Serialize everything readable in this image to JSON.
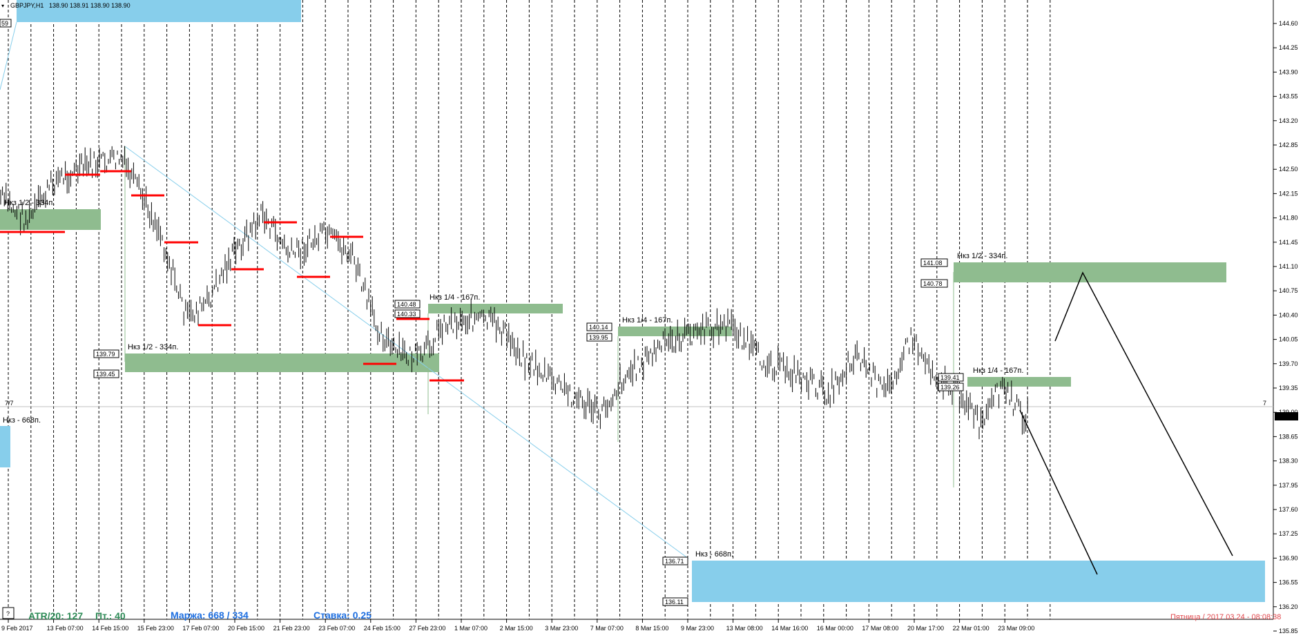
{
  "header": {
    "symbol": "GBPJPY,H1",
    "ohlc": "138.90 138.91 138.90 138.90"
  },
  "top_left_tag": "59",
  "current_price": "138.90",
  "side_count_left": "7/7",
  "side_count_right": "7",
  "price_axis": [
    "144.60",
    "144.25",
    "143.90",
    "143.55",
    "143.20",
    "142.85",
    "142.50",
    "142.15",
    "141.80",
    "141.45",
    "141.10",
    "140.75",
    "140.40",
    "140.05",
    "139.70",
    "139.35",
    "139.00",
    "138.65",
    "138.30",
    "137.95",
    "137.60",
    "137.25",
    "136.90",
    "136.55",
    "136.20",
    "135.85"
  ],
  "time_axis": [
    "9 Feb 2017",
    "13 Feb 07:00",
    "14 Feb 15:00",
    "15 Feb 23:00",
    "17 Feb 07:00",
    "20 Feb 15:00",
    "21 Feb 23:00",
    "23 Feb 07:00",
    "24 Feb 15:00",
    "27 Feb 23:00",
    "1 Mar 07:00",
    "2 Mar 15:00",
    "3 Mar 23:00",
    "7 Mar 07:00",
    "8 Mar 15:00",
    "9 Mar 23:00",
    "13 Mar 08:00",
    "14 Mar 16:00",
    "16 Mar 00:00",
    "17 Mar 08:00",
    "20 Mar 17:00",
    "22 Mar 01:00",
    "23 Mar 09:00"
  ],
  "zones": {
    "z_left_half": "Нкз 1/2 - 334п.",
    "z_left_mid_half": "Нкз 1/2 - 334п.",
    "z_quarter_1": "Нкз 1/4 - 167п.",
    "z_quarter_2": "Нкз 1/4 - 167п.",
    "z_right_half": "Нкз 1/2 - 334п.",
    "z_right_quarter": "Нкз 1/4 - 167п.",
    "z_full_left": "Нкз - 668п.",
    "z_full_bottom": "Нкз - 668п."
  },
  "price_labels": {
    "p13979": "139.79",
    "p13945": "139.45",
    "p14048": "140.48",
    "p14033": "140.33",
    "p14014": "140.14",
    "p13995": "139.95",
    "p14108": "141.08",
    "p14078": "140.78",
    "p13941": "139.41",
    "p13926": "139.26",
    "p13671": "136.71",
    "p13611": "136.11"
  },
  "footer": {
    "help_button": "?",
    "atr": "ATR/20: 127",
    "pt": "Пт.: 40",
    "margin": "Маржа: 668 / 334",
    "rate": "Ставка: 0.25",
    "datetime": "Пятница  /  2017.03.24  -  08:08:38"
  },
  "colors": {
    "zone_green": "#8fbc8f",
    "zone_blue": "#87ceeb",
    "level_red": "#ff0000",
    "atr_green": "#2e8b57",
    "margin_blue": "#1e6fe0",
    "footer_red": "#e0474c"
  }
}
